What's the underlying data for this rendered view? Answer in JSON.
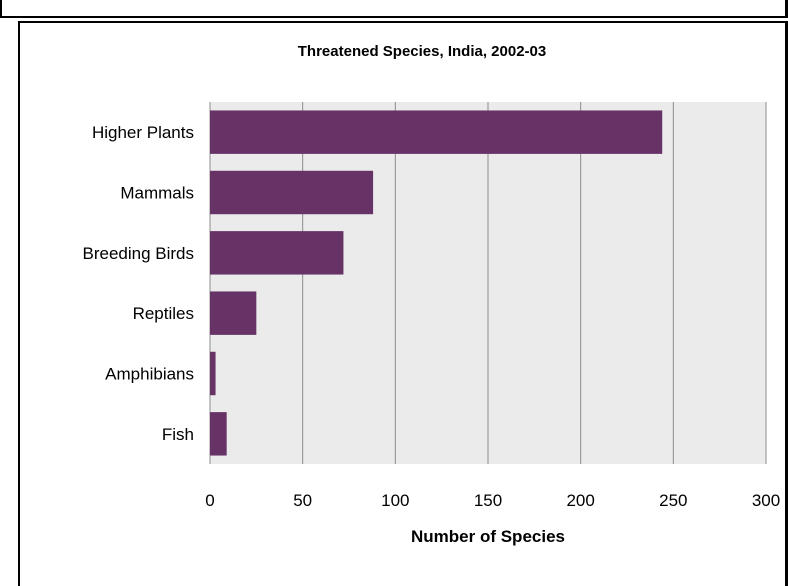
{
  "chart_data": {
    "type": "bar",
    "orientation": "horizontal",
    "title": "Threatened Species, India, 2002-03",
    "xlabel": "Number of Species",
    "ylabel": "",
    "categories": [
      "Higher Plants",
      "Mammals",
      "Breeding Birds",
      "Reptiles",
      "Amphibians",
      "Fish"
    ],
    "values": [
      244,
      88,
      72,
      25,
      3,
      9
    ],
    "xlim": [
      0,
      300
    ],
    "x_ticks": [
      "0",
      "50",
      "100",
      "150",
      "200",
      "250",
      "300"
    ],
    "grid": "vertical",
    "bar_color": "#673366",
    "plot_background": "#ebebeb",
    "legend": "none"
  }
}
